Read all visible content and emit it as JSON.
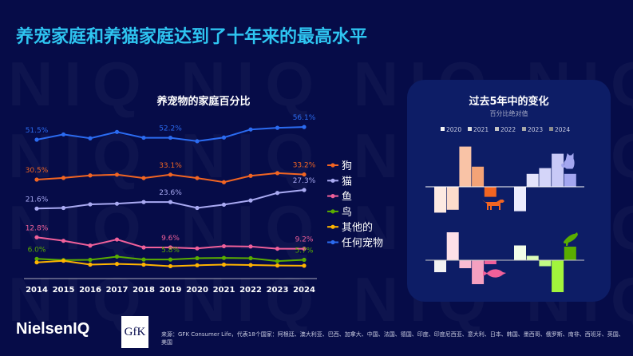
{
  "title": "养宠家庭和养猫家庭达到了十年来的最高水平",
  "watermark": "NIQ",
  "chart_data": [
    {
      "type": "line",
      "title": "养宠物的家庭百分比",
      "categories": [
        "2014",
        "2015",
        "2016",
        "2017",
        "2018",
        "2019",
        "2020",
        "2021",
        "2022",
        "2023",
        "2024"
      ],
      "legend_position": "right",
      "grid": false,
      "series": [
        {
          "name": "狗",
          "color": "#f26522",
          "values": [
            30.5,
            31.4,
            32.7,
            33.1,
            31.3,
            33.1,
            31.3,
            29.7,
            32.5,
            33.9,
            33.2
          ],
          "labels": {
            "0": "30.5%",
            "5": "33.1%",
            "10": "33.2%"
          }
        },
        {
          "name": "猫",
          "color": "#a9aaf2",
          "values": [
            21.6,
            21.8,
            22.9,
            23.1,
            23.6,
            23.6,
            21.8,
            22.8,
            24.1,
            26.4,
            27.3
          ],
          "labels": {
            "0": "21.6%",
            "5": "23.6%",
            "10": "27.3%"
          }
        },
        {
          "name": "鱼",
          "color": "#f0609a",
          "values": [
            12.8,
            11.7,
            10.2,
            12.1,
            9.6,
            9.6,
            9.3,
            10.0,
            9.9,
            9.2,
            9.2
          ],
          "labels": {
            "0": "12.8%",
            "5": "9.6%",
            "10": "9.2%"
          }
        },
        {
          "name": "鸟",
          "color": "#5aad00",
          "values": [
            6.0,
            5.6,
            5.7,
            6.7,
            5.8,
            5.8,
            6.2,
            6.3,
            6.2,
            5.3,
            5.7
          ],
          "labels": {
            "0": "6.0%",
            "5": "5.8%",
            "10": "5.7%"
          }
        },
        {
          "name": "其他的",
          "color": "#ffb400",
          "values": [
            4.9,
            5.4,
            3.9,
            4.2,
            3.9,
            3.2,
            3.6,
            3.9,
            3.7,
            3.5,
            3.4
          ],
          "labels": {}
        },
        {
          "name": "任何宠物",
          "color": "#2b6bf0",
          "values": [
            51.5,
            53.4,
            52.0,
            54.3,
            52.2,
            52.2,
            50.7,
            52.3,
            55.2,
            55.8,
            56.1
          ],
          "labels": {
            "0": "51.5%",
            "5": "52.2%",
            "10": "56.1%"
          }
        }
      ]
    },
    {
      "type": "bar",
      "title": "过去5年中的变化",
      "subtitle": "百分比绝对值",
      "categories": [
        "2020",
        "2021",
        "2022",
        "2023",
        "2024"
      ],
      "legend_colors": [
        "#f4f4f4",
        "#dcdcdc",
        "#c4c4c4",
        "#a8a8a8",
        "#8c8c8c"
      ],
      "panels": [
        {
          "pet": "dog",
          "icon": "dog-icon",
          "values": [
            -1.8,
            -1.6,
            2.8,
            1.4,
            -0.7
          ],
          "colors": [
            "#fdeae2",
            "#fcdccc",
            "#f9c3a6",
            "#f4a377",
            "#f26522"
          ]
        },
        {
          "pet": "cat",
          "icon": "cat-icon",
          "values": [
            -1.7,
            0.9,
            1.3,
            2.3,
            0.9
          ],
          "colors": [
            "#ececfc",
            "#e4e4fb",
            "#d4d5f9",
            "#c8c9f7",
            "#a3a6f0"
          ]
        },
        {
          "pet": "fish",
          "icon": "fish-icon",
          "values": [
            -0.3,
            0.7,
            -0.2,
            -0.6,
            -0.1
          ],
          "colors": [
            "#f2f2f2",
            "#fde0e8",
            "#f9bcd2",
            "#f4a0c0",
            "#f0609a"
          ]
        },
        {
          "pet": "bird",
          "icon": "bird-icon",
          "values": [
            0.37,
            0.11,
            -0.15,
            -0.8,
            0.34
          ],
          "colors": [
            "#f2fde8",
            "#dcfcb8",
            "#c2fa84",
            "#a2f53c",
            "#5aad00"
          ]
        }
      ]
    }
  ],
  "logos": {
    "nielseniq": "NielsenIQ",
    "gfk": "GfK"
  },
  "footnote": "来源：GFK Consumer Life，代表18个国家：阿根廷、澳大利亚、巴西、加拿大、中国、法国、德国、印度、印度尼西亚、意大利、日本、韩国、墨西哥、俄罗斯、南非、西班牙、英国、美国"
}
